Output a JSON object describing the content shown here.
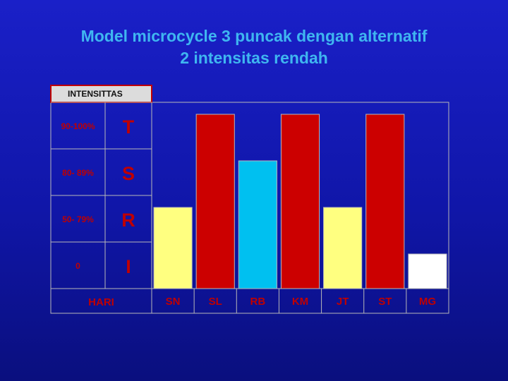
{
  "title": {
    "line1": "Model microcycle 3 puncak dengan alternatif",
    "line2": "2 intensitas rendah"
  },
  "chart_data": {
    "type": "bar",
    "legend_header": "INTENSITTAS",
    "levels": [
      {
        "range": "90-100%",
        "code": "T",
        "value": 4
      },
      {
        "range": "80- 89%",
        "code": "S",
        "value": 3
      },
      {
        "range": "50- 79%",
        "code": "R",
        "value": 2
      },
      {
        "range": "0",
        "code": "I",
        "value": 1
      }
    ],
    "xlabel": "HARI",
    "categories": [
      "SN",
      "SL",
      "RB",
      "KM",
      "JT",
      "ST",
      "MG"
    ],
    "values": [
      2,
      4,
      3,
      4,
      2,
      4,
      1
    ],
    "ylim": [
      0,
      4
    ],
    "colors": {
      "T": "#cc0000",
      "S": "#00c0f0",
      "R": "#ffff80",
      "I": "#ffffff",
      "header_bg": "#dcdcdc",
      "header_border": "#c00000",
      "cell_text": "#c00000",
      "grid": "#b8b8b8"
    }
  }
}
